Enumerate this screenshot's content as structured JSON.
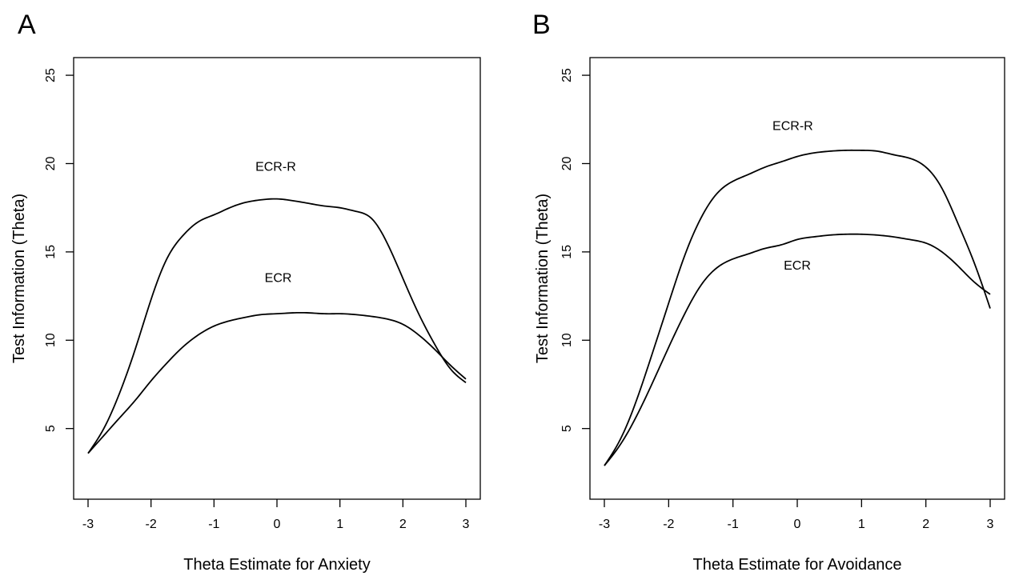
{
  "chart_data": [
    {
      "type": "line",
      "panel_label": "A",
      "title": "",
      "xlabel": "Theta Estimate for Anxiety",
      "ylabel": "Test Information (Theta)",
      "xlim": [
        -3,
        3
      ],
      "ylim": [
        1,
        26
      ],
      "xticks": [
        -3,
        -2,
        -1,
        0,
        1,
        2,
        3
      ],
      "yticks": [
        5,
        10,
        15,
        20,
        25
      ],
      "grid": false,
      "legend": "none",
      "series": [
        {
          "name": "ECR-R",
          "label_at": [
            -0.02,
            19.6
          ],
          "x": [
            -3,
            -2.75,
            -2.5,
            -2.25,
            -2,
            -1.75,
            -1.5,
            -1.25,
            -1,
            -0.75,
            -0.5,
            -0.25,
            0,
            0.25,
            0.5,
            0.75,
            1,
            1.25,
            1.5,
            1.75,
            2,
            2.25,
            2.5,
            2.75,
            3
          ],
          "y": [
            3.6,
            5.0,
            7.0,
            9.5,
            12.3,
            14.6,
            15.9,
            16.7,
            17.1,
            17.5,
            17.8,
            17.95,
            18.0,
            17.9,
            17.75,
            17.6,
            17.5,
            17.3,
            16.9,
            15.5,
            13.5,
            11.5,
            9.8,
            8.4,
            7.6
          ]
        },
        {
          "name": "ECR",
          "label_at": [
            0.02,
            13.3
          ],
          "x": [
            -3,
            -2.75,
            -2.5,
            -2.25,
            -2,
            -1.75,
            -1.5,
            -1.25,
            -1,
            -0.75,
            -0.5,
            -0.25,
            0,
            0.25,
            0.5,
            0.75,
            1,
            1.25,
            1.5,
            1.75,
            2,
            2.25,
            2.5,
            2.75,
            3
          ],
          "y": [
            3.6,
            4.6,
            5.6,
            6.6,
            7.7,
            8.7,
            9.6,
            10.3,
            10.8,
            11.1,
            11.3,
            11.45,
            11.5,
            11.55,
            11.55,
            11.5,
            11.5,
            11.45,
            11.35,
            11.2,
            10.9,
            10.3,
            9.5,
            8.6,
            7.8
          ]
        }
      ]
    },
    {
      "type": "line",
      "panel_label": "B",
      "title": "",
      "xlabel": "Theta Estimate for Avoidance",
      "ylabel": "Test Information (Theta)",
      "xlim": [
        -3,
        3
      ],
      "ylim": [
        1,
        26
      ],
      "xticks": [
        -3,
        -2,
        -1,
        0,
        1,
        2,
        3
      ],
      "yticks": [
        5,
        10,
        15,
        20,
        25
      ],
      "grid": false,
      "legend": "none",
      "series": [
        {
          "name": "ECR-R",
          "label_at": [
            -0.07,
            21.9
          ],
          "x": [
            -3,
            -2.75,
            -2.5,
            -2.25,
            -2,
            -1.75,
            -1.5,
            -1.25,
            -1,
            -0.75,
            -0.5,
            -0.25,
            0,
            0.25,
            0.5,
            0.75,
            1,
            1.25,
            1.5,
            1.75,
            2,
            2.25,
            2.5,
            2.75,
            3
          ],
          "y": [
            2.9,
            4.4,
            6.6,
            9.3,
            12.1,
            14.8,
            16.9,
            18.3,
            19.0,
            19.4,
            19.8,
            20.1,
            20.4,
            20.6,
            20.7,
            20.75,
            20.75,
            20.7,
            20.5,
            20.3,
            19.8,
            18.6,
            16.6,
            14.4,
            11.8
          ]
        },
        {
          "name": "ECR",
          "label_at": [
            0.0,
            14.0
          ],
          "x": [
            -3,
            -2.75,
            -2.5,
            -2.25,
            -2,
            -1.75,
            -1.5,
            -1.25,
            -1,
            -0.75,
            -0.5,
            -0.25,
            0,
            0.25,
            0.5,
            0.75,
            1,
            1.25,
            1.5,
            1.75,
            2,
            2.25,
            2.5,
            2.75,
            3
          ],
          "y": [
            2.9,
            4.1,
            5.7,
            7.6,
            9.6,
            11.5,
            13.1,
            14.1,
            14.6,
            14.9,
            15.2,
            15.4,
            15.7,
            15.85,
            15.95,
            16.0,
            16.0,
            15.95,
            15.85,
            15.7,
            15.5,
            15.0,
            14.2,
            13.3,
            12.6
          ]
        }
      ]
    }
  ]
}
